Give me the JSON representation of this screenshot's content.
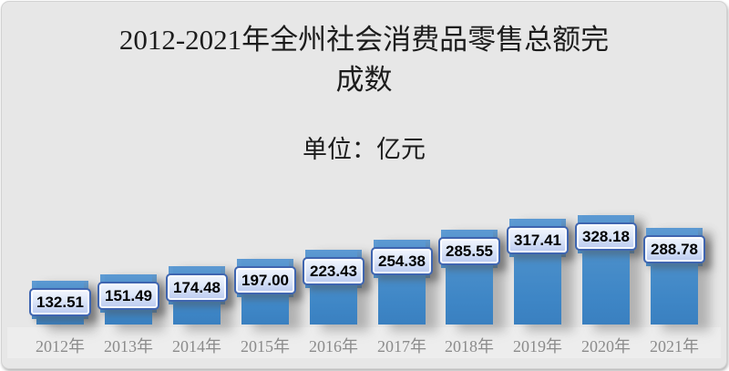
{
  "header": {
    "title_line1": "2012-2021年全州社会消费品零售总额完",
    "title_line2": "成数"
  },
  "chart_data": {
    "type": "bar",
    "title": "2012-2021年全州社会消费品零售总额完成数",
    "subtitle": "单位：亿元",
    "categories": [
      "2012年",
      "2013年",
      "2014年",
      "2015年",
      "2016年",
      "2017年",
      "2018年",
      "2019年",
      "2020年",
      "2021年"
    ],
    "values": [
      132.51,
      151.49,
      174.48,
      197.0,
      223.43,
      254.38,
      285.55,
      317.41,
      328.18,
      288.78
    ],
    "value_labels": [
      "132.51",
      "151.49",
      "174.48",
      "197.00",
      "223.43",
      "254.38",
      "285.55",
      "317.41",
      "328.18",
      "288.78"
    ],
    "xlabel": "",
    "ylabel": "",
    "ylim": [
      0,
      340
    ],
    "grid": false,
    "legend": "none",
    "data_labels": "boxed callouts above each bar",
    "colors": {
      "card_background": "#e7e7e7",
      "bar_top": "#5c99d2",
      "bar_bottom": "#3a80c0",
      "label_box_border": "#3f65b0",
      "label_box_fill_top": "#f1f5fd",
      "label_box_fill_bottom": "#b9c9f0",
      "label_text": "#000000",
      "axis_label": "#8b8b8b",
      "title_text": "#1c1c1c"
    }
  }
}
